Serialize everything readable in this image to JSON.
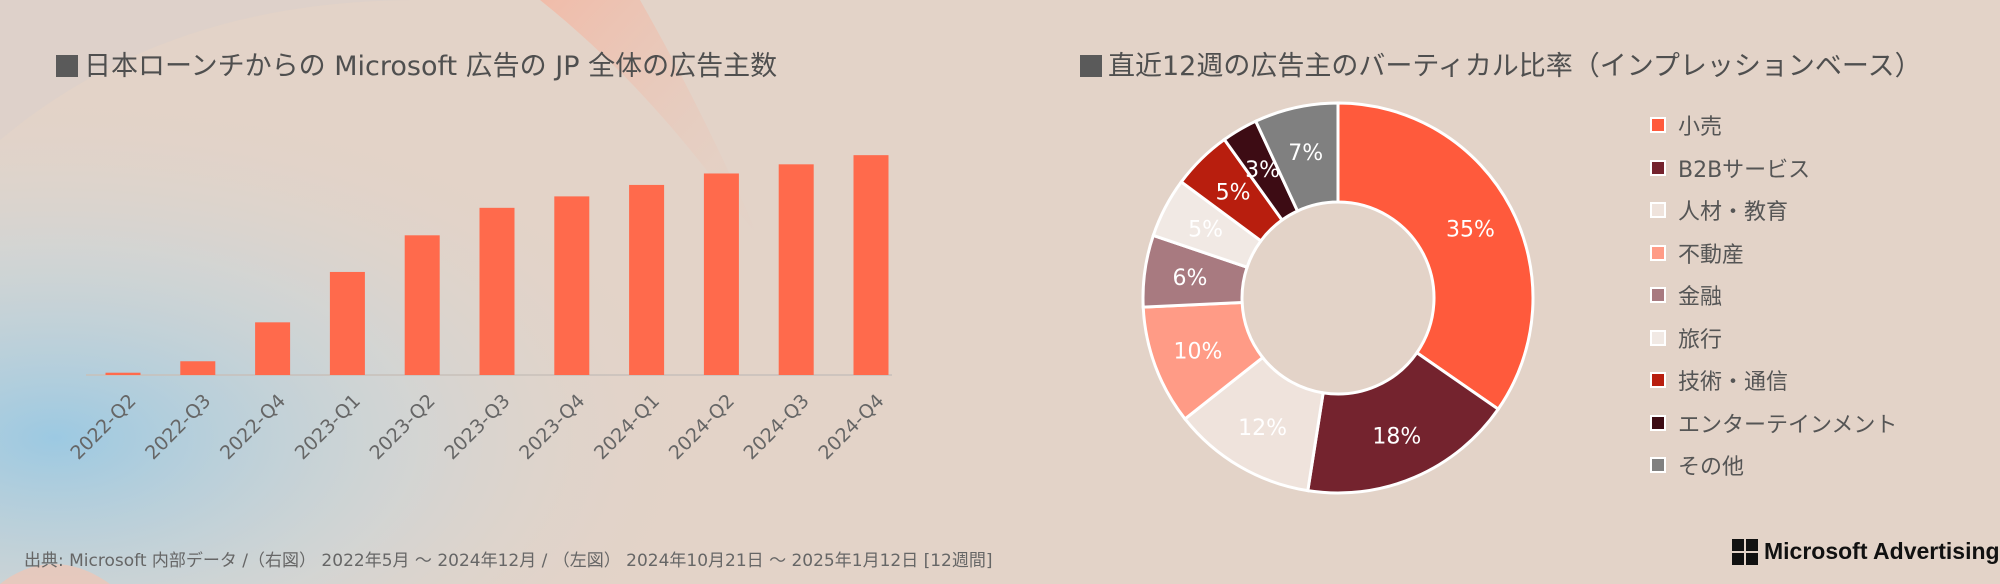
{
  "left_title": "日本ローンチからの Microsoft 広告の JP 全体の広告主数",
  "right_title": "直近12週の広告主のバーティカル比率（インプレッションベース）",
  "source_note": "出典: Microsoft 内部データ /（右図） 2022年5月 〜 2024年12月 / （左図） 2024年10月21日 〜 2025年1月12日 [12週間]",
  "brand": "Microsoft Advertising",
  "chart_data": [
    {
      "type": "bar",
      "title": "日本ローンチからの Microsoft 広告の JP 全体の広告主数",
      "categories": [
        "2022-Q2",
        "2022-Q3",
        "2022-Q4",
        "2023-Q1",
        "2023-Q2",
        "2023-Q3",
        "2023-Q4",
        "2024-Q1",
        "2024-Q2",
        "2024-Q3",
        "2024-Q4"
      ],
      "values": [
        1,
        6,
        23,
        45,
        61,
        73,
        78,
        83,
        88,
        92,
        96
      ],
      "ylim": [
        0,
        100
      ],
      "grid": false,
      "bar_color": "#ff6a4c"
    },
    {
      "type": "pie",
      "donut": true,
      "title": "直近12週の広告主のバーティカル比率（インプレッションベース）",
      "legend_position": "right",
      "slices": [
        {
          "label": "小売",
          "value": 35,
          "text": "35%",
          "color": "#ff5a3c"
        },
        {
          "label": "B2Bサービス",
          "value": 18,
          "text": "18%",
          "color": "#74232e"
        },
        {
          "label": "人材・教育",
          "value": 12,
          "text": "12%",
          "color": "#efe3dc"
        },
        {
          "label": "不動産",
          "value": 10,
          "text": "10%",
          "color": "#ff9b86"
        },
        {
          "label": "金融",
          "value": 6,
          "text": "6%",
          "color": "#a87a80"
        },
        {
          "label": "旅行",
          "value": 5,
          "text": "5%",
          "color": "#f1e9e4"
        },
        {
          "label": "技術・通信",
          "value": 5,
          "text": "5%",
          "color": "#b81e0e"
        },
        {
          "label": "エンターテインメント",
          "value": 3,
          "text": "3%",
          "color": "#3d0c14"
        },
        {
          "label": "その他",
          "value": 7,
          "text": "7%",
          "color": "#808080"
        }
      ]
    }
  ]
}
